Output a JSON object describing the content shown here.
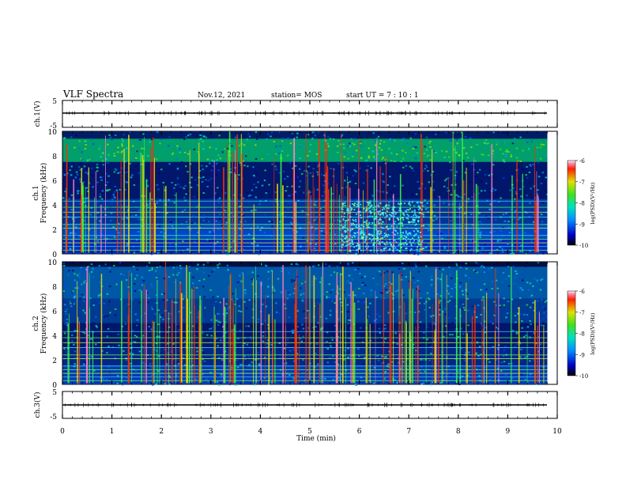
{
  "header": {
    "title": "VLF Spectra",
    "date": "Nov.12, 2021",
    "station": "station= MOS",
    "start": "start  UT =   7 : 10 : 1"
  },
  "panels": {
    "ch1_wave": {
      "ylabel": "ch.1(V)",
      "yticks": [
        "5",
        "-5"
      ]
    },
    "ch1_spec": {
      "ylabel_line1": "ch.1",
      "ylabel_line2": "Frequency (kHz)",
      "yticks": [
        "10",
        "8",
        "6",
        "4",
        "2",
        "0"
      ]
    },
    "ch2_spec": {
      "ylabel_line1": "ch.2",
      "ylabel_line2": "Frequency (kHz)",
      "yticks": [
        "10",
        "8",
        "6",
        "4",
        "2",
        "0"
      ]
    },
    "ch3_wave": {
      "ylabel": "ch.3(V)",
      "yticks": [
        "5",
        "-5"
      ]
    }
  },
  "colorbar": {
    "label": "log(PSD)(V²/Hz)",
    "ticks": [
      "-6",
      "-7",
      "-8",
      "-9",
      "-10"
    ]
  },
  "xaxis": {
    "label": "Time  (min)",
    "ticks": [
      "0",
      "1",
      "2",
      "3",
      "4",
      "5",
      "6",
      "7",
      "8",
      "9",
      "10"
    ]
  },
  "chart_data": [
    {
      "type": "line",
      "title": "VLF Spectra",
      "name": "ch.1(V)",
      "ylabel": "ch.1(V)",
      "xlabel": "Time  (min)",
      "xlim": [
        0,
        10
      ],
      "ylim": [
        -5,
        5
      ],
      "x": [
        0,
        9.8
      ],
      "y": [
        0,
        0
      ]
    },
    {
      "type": "heatmap",
      "name": "ch.1",
      "ylabel": "Frequency (kHz)",
      "xlim": [
        0,
        10
      ],
      "ylim": [
        0,
        10
      ],
      "colorscale_range": [
        -10,
        -6
      ],
      "colorbar_label": "log(PSD)(V²/Hz)",
      "data_end_min": 9.8
    },
    {
      "type": "heatmap",
      "name": "ch.2",
      "ylabel": "Frequency (kHz)",
      "xlim": [
        0,
        10
      ],
      "ylim": [
        0,
        10
      ],
      "colorscale_range": [
        -10,
        -6
      ],
      "colorbar_label": "log(PSD)(V²/Hz)",
      "data_end_min": 9.8
    },
    {
      "type": "line",
      "name": "ch.3(V)",
      "ylabel": "ch.3(V)",
      "xlabel": "Time  (min)",
      "xlim": [
        0,
        10
      ],
      "ylim": [
        -5,
        5
      ],
      "x": [
        0,
        9.8
      ],
      "y": [
        0,
        0
      ]
    }
  ]
}
